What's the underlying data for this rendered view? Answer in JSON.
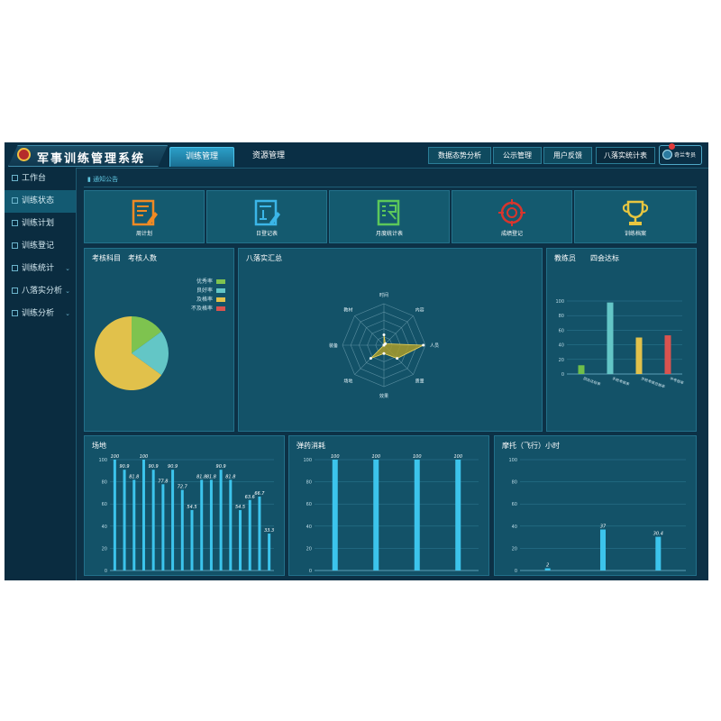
{
  "header": {
    "app_title": "军事训练管理系统",
    "nav_tabs": [
      {
        "label": "训练管理",
        "active": true
      },
      {
        "label": "资源管理",
        "active": false
      }
    ],
    "right_buttons": [
      "数据态势分析",
      "公示管理",
      "用户反馈",
      "八落实统计表"
    ],
    "user_name": "奇兰专员"
  },
  "sidebar": {
    "items": [
      {
        "label": "工作台",
        "active": false,
        "caret": false
      },
      {
        "label": "训练状态",
        "active": true,
        "caret": false
      },
      {
        "label": "训练计划",
        "active": false,
        "caret": false
      },
      {
        "label": "训练登记",
        "active": false,
        "caret": false
      },
      {
        "label": "训练统计",
        "active": false,
        "caret": true
      },
      {
        "label": "八落实分析",
        "active": false,
        "caret": true
      },
      {
        "label": "训练分析",
        "active": false,
        "caret": true
      }
    ]
  },
  "breadcrumb": "通知公告",
  "quick_cards": [
    {
      "label": "周计划",
      "icon": "weekly-plan-icon",
      "color": "#f08a24"
    },
    {
      "label": "日登记表",
      "icon": "daily-register-icon",
      "color": "#3bb6e8"
    },
    {
      "label": "月度统计表",
      "icon": "monthly-stats-icon",
      "color": "#5cc85a"
    },
    {
      "label": "成绩登记",
      "icon": "target-score-icon",
      "color": "#d8352d"
    },
    {
      "label": "训练档案",
      "icon": "trophy-archive-icon",
      "color": "#e8c640"
    }
  ],
  "panels": {
    "assessment": {
      "title_a": "考核科目",
      "title_b": "考核人数",
      "legend": [
        {
          "label": "优秀率",
          "color": "#7ec34f"
        },
        {
          "label": "良好率",
          "color": "#63c6c6"
        },
        {
          "label": "及格率",
          "color": "#e1c14b"
        },
        {
          "label": "不及格率",
          "color": "#d9534f"
        }
      ]
    },
    "radar": {
      "title": "八落实汇总",
      "axes": [
        "时间",
        "内容",
        "人员",
        "质量",
        "效果",
        "场地",
        "装备",
        "教材"
      ]
    },
    "instructor": {
      "title_a": "教练员",
      "title_b": "四会达标"
    },
    "venue": {
      "title": "场地"
    },
    "ammo": {
      "title": "弹药消耗"
    },
    "motor": {
      "title": "摩托（飞行）小时"
    }
  },
  "chart_data": [
    {
      "type": "pie",
      "labels": [
        "优秀率",
        "良好率",
        "及格率",
        "不及格率"
      ],
      "values": [
        15,
        20,
        65,
        0
      ],
      "colors": [
        "#7ec34f",
        "#63c6c6",
        "#e1c14b",
        "#d9534f"
      ]
    },
    {
      "type": "radar",
      "axes": [
        "时间",
        "内容",
        "人员",
        "质量",
        "效果",
        "场地",
        "装备",
        "教材"
      ],
      "values": [
        25,
        5,
        95,
        45,
        20,
        45,
        0,
        0
      ],
      "max": 100
    },
    {
      "type": "bar",
      "categories": [
        "四会达标率",
        "手枪考核率",
        "步枪考核合格率",
        "中考核率"
      ],
      "values": [
        12,
        98,
        50,
        53
      ],
      "colors": [
        "#6fbf4a",
        "#63c6c6",
        "#e1c14b",
        "#d9534f"
      ],
      "ylim": [
        0,
        100
      ],
      "yticks": [
        0,
        20,
        40,
        60,
        80,
        100
      ]
    },
    {
      "type": "bar",
      "values": [
        100,
        90.9,
        81.8,
        100,
        90.9,
        77.8,
        90.9,
        72.7,
        54.5,
        81.8,
        81.8,
        90.9,
        81.8,
        54.5,
        63.6,
        66.7,
        33.3
      ],
      "data_labels": [
        "100",
        "90.9",
        "81.8",
        "100",
        "90.9",
        "77.8",
        "90.9",
        "72.7",
        "54.5",
        "81.8",
        "81.8",
        "90.9",
        "81.8",
        "54.5",
        "63.6",
        "66.7",
        "33.3"
      ],
      "ylim": [
        0,
        100
      ],
      "yticks": [
        0,
        20,
        40,
        60,
        80,
        100
      ]
    },
    {
      "type": "bar",
      "values": [
        100,
        100,
        100,
        100
      ],
      "data_labels": [
        "100",
        "100",
        "100",
        "100"
      ],
      "ylim": [
        0,
        100
      ],
      "yticks": [
        0,
        20,
        40,
        60,
        80,
        100
      ]
    },
    {
      "type": "bar",
      "values": [
        2,
        37,
        30.4
      ],
      "data_labels": [
        "2",
        "37",
        "30.4"
      ],
      "ylim": [
        0,
        100
      ],
      "yticks": [
        0,
        20,
        40,
        60,
        80,
        100
      ]
    }
  ]
}
